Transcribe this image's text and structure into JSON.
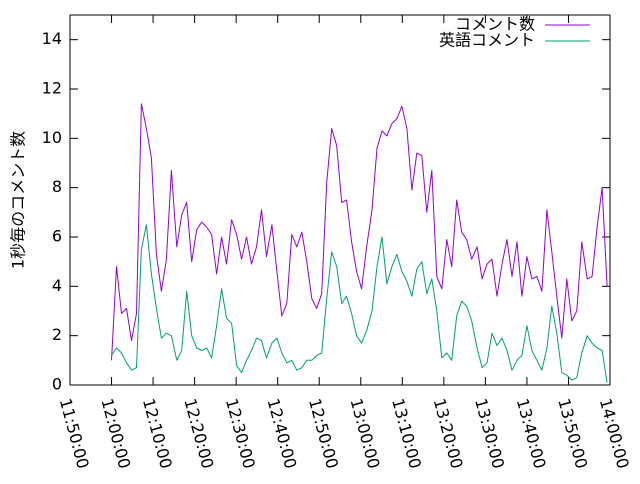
{
  "chart_data": {
    "type": "line",
    "title": "",
    "xlabel": "",
    "ylabel": "1秒毎のコメント数",
    "ylim": [
      0,
      15
    ],
    "yticks": [
      0,
      2,
      4,
      6,
      8,
      10,
      12,
      14
    ],
    "xlim_minutes": [
      -10,
      120
    ],
    "xtick_minutes": [
      -10,
      0,
      10,
      20,
      30,
      40,
      50,
      60,
      70,
      80,
      90,
      100,
      110,
      120
    ],
    "xtick_labels": [
      "11:50:00",
      "12:00:00",
      "12:10:00",
      "12:20:00",
      "12:30:00",
      "12:40:00",
      "12:50:00",
      "13:00:00",
      "13:10:00",
      "13:20:00",
      "13:30:00",
      "13:40:00",
      "13:50:00",
      "14:00:00"
    ],
    "legend_position": "top-right",
    "grid": false,
    "series": [
      {
        "name": "コメント数",
        "color": "#9400d3",
        "x": [
          0.0,
          1.2,
          2.4,
          3.6,
          4.8,
          6.0,
          7.2,
          8.4,
          9.6,
          10.8,
          12.0,
          13.2,
          14.4,
          15.7,
          16.9,
          18.1,
          19.3,
          20.5,
          21.7,
          22.9,
          24.1,
          25.3,
          26.5,
          27.7,
          28.9,
          30.1,
          31.3,
          32.5,
          33.7,
          34.9,
          36.1,
          37.3,
          38.6,
          39.8,
          41.0,
          42.2,
          43.4,
          44.6,
          45.8,
          47.0,
          48.2,
          49.4,
          50.6,
          51.8,
          53.0,
          54.2,
          55.4,
          56.6,
          57.8,
          59.0,
          60.2,
          61.4,
          62.7,
          63.9,
          65.1,
          66.3,
          67.5,
          68.7,
          69.9,
          71.1,
          72.3,
          73.5,
          74.7,
          75.9,
          77.1,
          78.3,
          79.5,
          80.7,
          81.9,
          83.1,
          84.3,
          85.5,
          86.7,
          88.0,
          89.2,
          90.4,
          91.6,
          92.8,
          94.0,
          95.2,
          96.4,
          97.6,
          98.8,
          100.0,
          101.2,
          102.4,
          103.6,
          104.8,
          106.0,
          107.2,
          108.4,
          109.6,
          110.8,
          112.0,
          113.2,
          114.5,
          115.7,
          116.9,
          118.1,
          119.3
        ],
        "values": [
          1.0,
          4.8,
          2.9,
          3.1,
          1.8,
          2.9,
          11.4,
          10.4,
          9.2,
          5.3,
          3.8,
          5.1,
          8.7,
          5.6,
          6.9,
          7.4,
          5.0,
          6.3,
          6.6,
          6.4,
          6.1,
          4.5,
          6.0,
          4.9,
          6.7,
          6.1,
          5.1,
          6.0,
          4.9,
          5.6,
          7.1,
          5.2,
          6.5,
          4.6,
          2.8,
          3.3,
          6.1,
          5.6,
          6.2,
          5.0,
          3.5,
          3.1,
          3.7,
          8.2,
          10.4,
          9.7,
          7.4,
          7.5,
          5.8,
          4.6,
          3.9,
          5.6,
          7.1,
          9.6,
          10.3,
          10.1,
          10.6,
          10.8,
          11.3,
          10.4,
          7.9,
          9.4,
          9.3,
          7.0,
          8.7,
          4.4,
          3.9,
          5.9,
          4.8,
          7.5,
          6.2,
          5.9,
          5.1,
          5.6,
          4.3,
          4.9,
          5.1,
          3.6,
          4.9,
          5.9,
          4.4,
          5.8,
          3.6,
          5.2,
          4.3,
          4.4,
          3.8,
          7.1,
          5.4,
          3.6,
          1.9,
          4.3,
          2.6,
          3.0,
          5.8,
          4.3,
          4.4,
          6.4,
          8.0,
          4.0
        ]
      },
      {
        "name": "英語コメント",
        "color": "#009e73",
        "x": [
          0.0,
          1.2,
          2.4,
          3.6,
          4.8,
          6.0,
          7.2,
          8.4,
          9.6,
          10.8,
          12.0,
          13.2,
          14.4,
          15.7,
          16.9,
          18.1,
          19.3,
          20.5,
          21.7,
          22.9,
          24.1,
          25.3,
          26.5,
          27.7,
          28.9,
          30.1,
          31.3,
          32.5,
          33.7,
          34.9,
          36.1,
          37.3,
          38.6,
          39.8,
          41.0,
          42.2,
          43.4,
          44.6,
          45.8,
          47.0,
          48.2,
          49.4,
          50.6,
          51.8,
          53.0,
          54.2,
          55.4,
          56.6,
          57.8,
          59.0,
          60.2,
          61.4,
          62.7,
          63.9,
          65.1,
          66.3,
          67.5,
          68.7,
          69.9,
          71.1,
          72.3,
          73.5,
          74.7,
          75.9,
          77.1,
          78.3,
          79.5,
          80.7,
          81.9,
          83.1,
          84.3,
          85.5,
          86.7,
          88.0,
          89.2,
          90.4,
          91.6,
          92.8,
          94.0,
          95.2,
          96.4,
          97.6,
          98.8,
          100.0,
          101.2,
          102.4,
          103.6,
          104.8,
          106.0,
          107.2,
          108.4,
          109.6,
          110.8,
          112.0,
          113.2,
          114.5,
          115.7,
          116.9,
          118.1,
          119.3
        ],
        "values": [
          1.2,
          1.5,
          1.3,
          0.9,
          0.6,
          0.7,
          5.5,
          6.5,
          4.5,
          3.1,
          1.9,
          2.1,
          2.0,
          1.0,
          1.4,
          3.8,
          2.0,
          1.5,
          1.4,
          1.5,
          1.1,
          2.4,
          3.9,
          2.7,
          2.5,
          0.8,
          0.5,
          1.0,
          1.4,
          1.9,
          1.8,
          1.1,
          1.7,
          1.9,
          1.3,
          0.9,
          1.0,
          0.6,
          0.7,
          1.0,
          1.0,
          1.2,
          1.3,
          3.5,
          5.4,
          4.8,
          3.3,
          3.6,
          2.9,
          2.0,
          1.7,
          2.2,
          3.0,
          4.8,
          6.0,
          4.1,
          4.8,
          5.3,
          4.6,
          4.2,
          3.6,
          4.7,
          5.0,
          3.7,
          4.3,
          3.0,
          1.1,
          1.3,
          1.0,
          2.8,
          3.4,
          3.2,
          2.6,
          1.5,
          0.7,
          0.9,
          2.1,
          1.6,
          1.9,
          1.4,
          0.6,
          1.0,
          1.2,
          2.4,
          1.4,
          1.0,
          0.6,
          1.5,
          3.2,
          2.1,
          0.5,
          0.4,
          0.2,
          0.3,
          1.3,
          2.0,
          1.7,
          1.5,
          1.4,
          0.1
        ]
      }
    ]
  }
}
